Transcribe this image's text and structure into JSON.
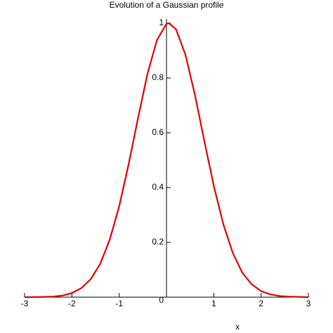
{
  "chart_data": {
    "type": "line",
    "title": "Evolution of a Gaussian profile",
    "xlabel": "x",
    "x": [
      -3,
      -2.8,
      -2.6,
      -2.4,
      -2.2,
      -2,
      -1.8,
      -1.6,
      -1.4,
      -1.2,
      -1,
      -0.8,
      -0.6,
      -0.4,
      -0.2,
      0,
      0.05,
      0.2,
      0.4,
      0.6,
      0.8,
      1,
      1.2,
      1.4,
      1.6,
      1.8,
      2,
      2.2,
      2.4,
      2.6,
      2.8,
      3
    ],
    "series": [
      {
        "color": "#e00000",
        "values": [
          0,
          0.0003,
          0.001,
          0.002,
          0.006,
          0.015,
          0.033,
          0.066,
          0.122,
          0.21,
          0.332,
          0.486,
          0.655,
          0.817,
          0.939,
          0.998,
          1,
          0.978,
          0.885,
          0.739,
          0.57,
          0.406,
          0.267,
          0.162,
          0.09,
          0.047,
          0.022,
          0.01,
          0.004,
          0.002,
          0.001,
          0
        ]
      }
    ],
    "xlim": [
      -3,
      3
    ],
    "ylim": [
      0,
      1
    ],
    "xticks": [
      -3,
      -2,
      -1,
      1,
      2,
      3
    ],
    "yticks": [
      0,
      0.2,
      0.4,
      0.6,
      0.8,
      1
    ]
  }
}
